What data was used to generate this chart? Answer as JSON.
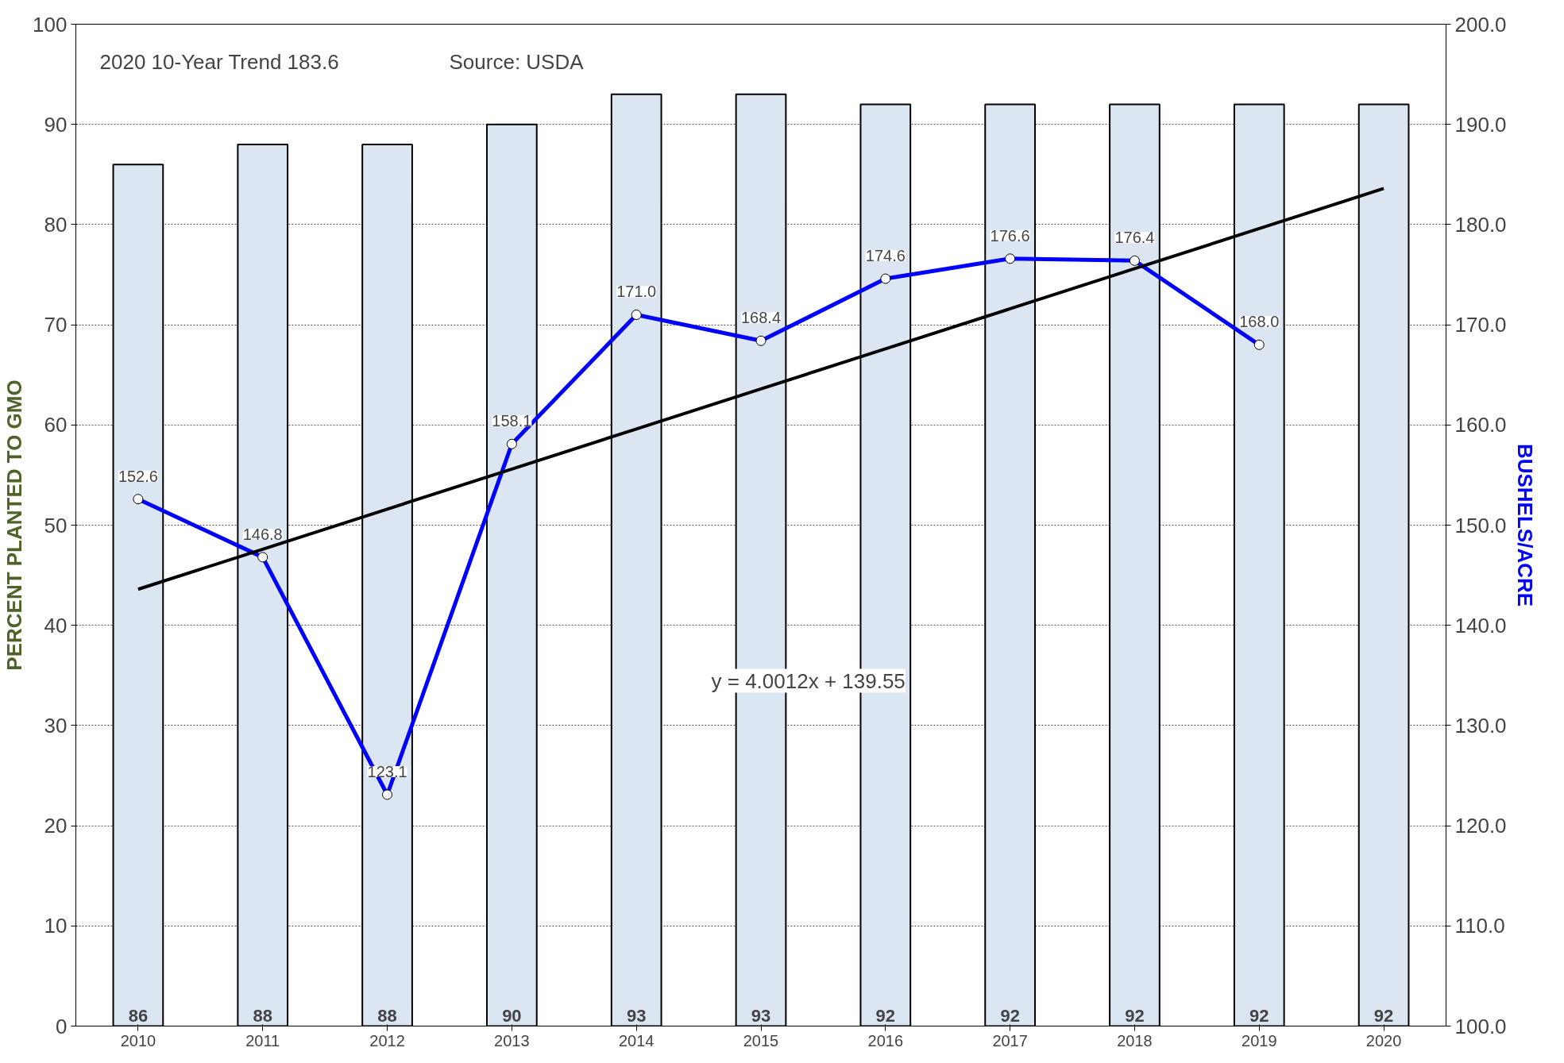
{
  "chart_data": {
    "type": "bar",
    "categories": [
      "2010",
      "2011",
      "2012",
      "2013",
      "2014",
      "2015",
      "2016",
      "2017",
      "2018",
      "2019",
      "2020"
    ],
    "series": [
      {
        "color": "#dce6f2",
        "values": [
          86,
          88,
          88,
          90,
          93,
          93,
          92,
          92,
          92,
          92,
          92
        ],
        "value_labels": [
          "86",
          "88",
          "88",
          "90",
          "93",
          "93",
          "92",
          "92",
          "92",
          "92",
          "92"
        ]
      },
      {
        "type": "line",
        "axis": "y2",
        "color": "#0000ff",
        "marker": "circle",
        "values": [
          152.6,
          146.8,
          123.1,
          158.1,
          171.0,
          168.4,
          174.6,
          176.6,
          176.4,
          168.0,
          null
        ],
        "value_labels": [
          "152.6",
          "146.8",
          "123.1",
          "158.1",
          "171.0",
          "168.4",
          "174.6",
          "176.6",
          "176.4",
          "168.0",
          null
        ]
      },
      {
        "type": "line",
        "axis": "y2",
        "color": "#000000",
        "marker": "none",
        "values": [
          143.6,
          147.6,
          151.6,
          155.6,
          159.6,
          163.6,
          167.6,
          171.6,
          175.6,
          179.6,
          183.6
        ]
      }
    ],
    "ylabel": "PERCENT PLANTED TO GMO",
    "y2label": "BUSHELS/ACRE",
    "ylim": [
      0,
      100
    ],
    "yticks": [
      0,
      10,
      20,
      30,
      40,
      50,
      60,
      70,
      80,
      90,
      100
    ],
    "y2lim": [
      100,
      200
    ],
    "y2ticks": [
      {
        "value": 100,
        "label": "100.0"
      },
      {
        "value": 110,
        "label": "110.0"
      },
      {
        "value": 120,
        "label": "120.0"
      },
      {
        "value": 130,
        "label": "130.0"
      },
      {
        "value": 140,
        "label": "140.0"
      },
      {
        "value": 150,
        "label": "150.0"
      },
      {
        "value": 160,
        "label": "160.0"
      },
      {
        "value": 170,
        "label": "170.0"
      },
      {
        "value": 180,
        "label": "180.0"
      },
      {
        "value": 190,
        "label": "190.0"
      },
      {
        "value": 200,
        "label": "200.0"
      }
    ],
    "grid": "y",
    "annotations": [
      "2020 10-Year Trend 183.6",
      "Source: USDA",
      "y = 4.0012x + 139.55"
    ]
  }
}
